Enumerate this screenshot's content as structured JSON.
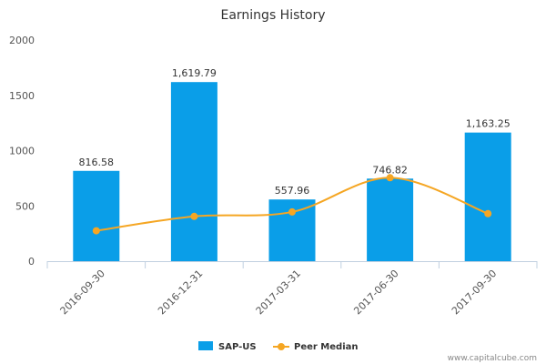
{
  "chart_data": {
    "type": "bar",
    "title": "Earnings History",
    "categories": [
      "2016-09-30",
      "2016-12-31",
      "2017-03-31",
      "2017-06-30",
      "2017-09-30"
    ],
    "series": [
      {
        "name": "SAP-US",
        "type": "bar",
        "color": "#0a9ee8",
        "values": [
          816.58,
          1619.79,
          557.96,
          746.82,
          1163.25
        ],
        "labels": [
          "816.58",
          "1,619.79",
          "557.96",
          "746.82",
          "1,163.25"
        ]
      },
      {
        "name": "Peer Median",
        "type": "line",
        "smooth": true,
        "color": "#f5a623",
        "values": [
          275,
          405,
          445,
          755,
          430
        ]
      }
    ],
    "ylim": [
      0,
      2000
    ],
    "yticks": [
      "0",
      "500",
      "1000",
      "1500",
      "2000"
    ],
    "xlabel": "",
    "ylabel": "",
    "grid": false,
    "legend": "bottom"
  },
  "credit": "www.capitalcube.com"
}
